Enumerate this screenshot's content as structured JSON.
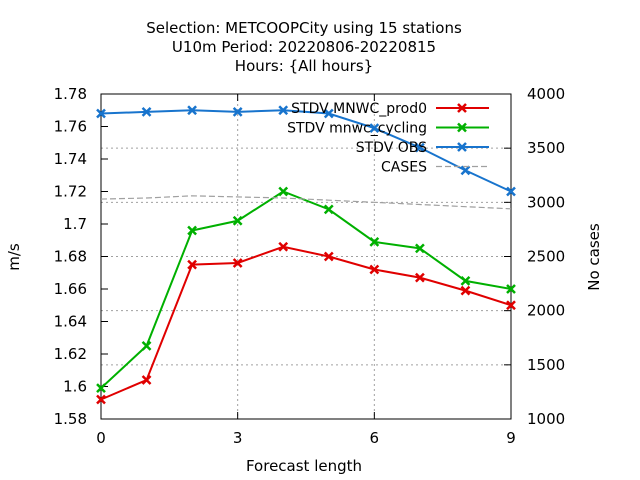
{
  "chart_data": {
    "type": "line",
    "title_lines": [
      "Selection: METCOOPCity using    15 stations",
      "U10m   Period: 20220806-20220815",
      "Hours: {All hours}"
    ],
    "xlabel": "Forecast length",
    "ylabel": "m/s",
    "y2label": "No cases",
    "x": [
      0,
      1,
      2,
      3,
      4,
      5,
      6,
      7,
      8,
      9
    ],
    "xlim": [
      0,
      9
    ],
    "xticks": [
      0,
      3,
      6,
      9
    ],
    "ylim": [
      1.58,
      1.78
    ],
    "yticks": [
      1.58,
      1.6,
      1.62,
      1.64,
      1.66,
      1.68,
      1.7,
      1.72,
      1.74,
      1.76,
      1.78
    ],
    "ytick_labels": [
      "1.58",
      "1.6",
      "1.62",
      "1.64",
      "1.66",
      "1.68",
      "1.7",
      "1.72",
      "1.74",
      "1.76",
      "1.78"
    ],
    "y2lim": [
      1000,
      4000
    ],
    "y2ticks": [
      1000,
      1500,
      2000,
      2500,
      3000,
      3500,
      4000
    ],
    "grid": true,
    "legend_position": "top-right",
    "series": [
      {
        "name": "STDV MNWC_prod0",
        "color": "#e00000",
        "axis": "left",
        "marker": "x",
        "values": [
          1.592,
          1.604,
          1.675,
          1.676,
          1.686,
          1.68,
          1.672,
          1.667,
          1.659,
          1.65
        ]
      },
      {
        "name": "STDV mnwc_cycling",
        "color": "#00b000",
        "axis": "left",
        "marker": "x",
        "values": [
          1.599,
          1.625,
          1.696,
          1.702,
          1.72,
          1.709,
          1.689,
          1.685,
          1.665,
          1.66
        ]
      },
      {
        "name": "STDV OBS",
        "color": "#1874cd",
        "axis": "left",
        "marker": "x",
        "values": [
          1.768,
          1.769,
          1.77,
          1.769,
          1.77,
          1.768,
          1.759,
          1.747,
          1.733,
          1.72
        ]
      },
      {
        "name": "CASES",
        "color": "#a0a0a0",
        "axis": "right",
        "marker": "none",
        "dash": true,
        "values": [
          3030,
          3040,
          3060,
          3050,
          3040,
          3020,
          3000,
          2980,
          2960,
          2940
        ]
      }
    ]
  }
}
